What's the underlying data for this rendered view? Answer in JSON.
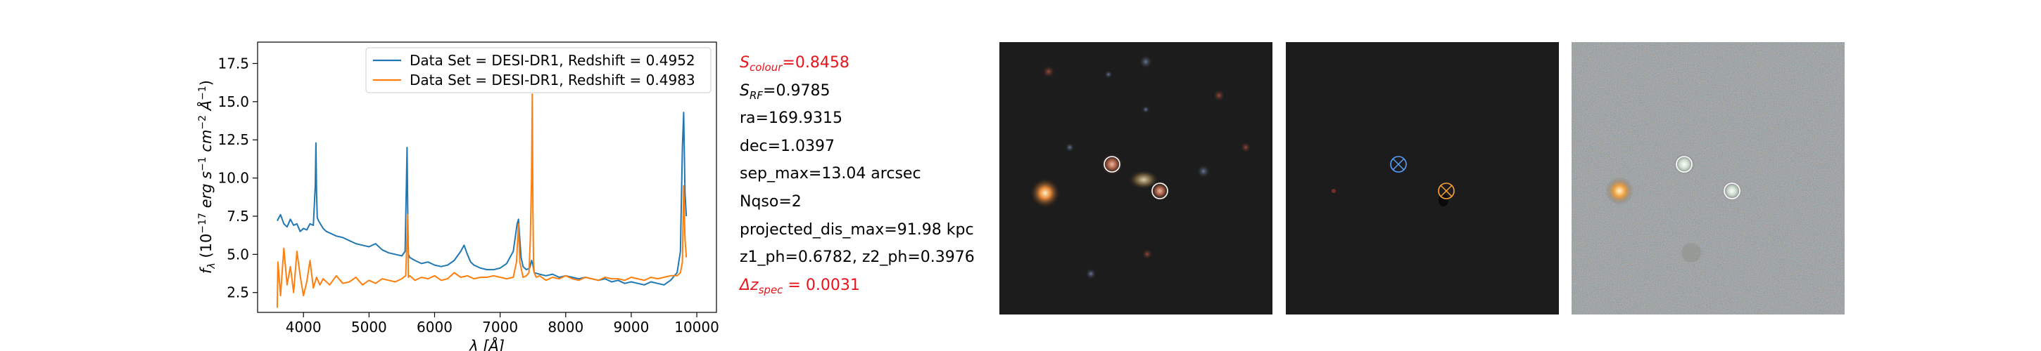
{
  "chart_data": {
    "type": "line",
    "xlabel": "λ [Å]",
    "ylabel": "f_λ (10^{-17} erg s^{-1} cm^{-2} Å^{-1})",
    "xlim": [
      3300,
      10300
    ],
    "ylim": [
      1.2,
      18.9
    ],
    "xticks": [
      4000,
      5000,
      6000,
      7000,
      8000,
      9000,
      10000
    ],
    "yticks": [
      2.5,
      5.0,
      7.5,
      10.0,
      12.5,
      15.0,
      17.5
    ],
    "grid": false,
    "legend_position": "top-right",
    "series": [
      {
        "name": "Data Set = DESI-DR1, Redshift = 0.4952",
        "color": "#1f77b4",
        "x": [
          3600,
          3650,
          3700,
          3750,
          3800,
          3850,
          3900,
          3950,
          4000,
          4050,
          4100,
          4150,
          4180,
          4190,
          4200,
          4210,
          4230,
          4300,
          4350,
          4400,
          4500,
          4600,
          4700,
          4800,
          4900,
          5000,
          5100,
          5200,
          5300,
          5400,
          5500,
          5550,
          5580,
          5590,
          5600,
          5620,
          5700,
          5800,
          5900,
          6000,
          6100,
          6200,
          6300,
          6400,
          6450,
          6500,
          6550,
          6600,
          6700,
          6800,
          6900,
          7000,
          7100,
          7200,
          7260,
          7280,
          7300,
          7320,
          7350,
          7400,
          7450,
          7480,
          7500,
          7520,
          7600,
          7700,
          7800,
          7900,
          8000,
          8100,
          8200,
          8300,
          8400,
          8500,
          8600,
          8700,
          8800,
          8900,
          9000,
          9100,
          9200,
          9300,
          9400,
          9500,
          9600,
          9700,
          9750,
          9780,
          9800,
          9820,
          9840
        ],
        "y": [
          7.2,
          7.6,
          7.0,
          6.8,
          7.3,
          6.9,
          7.0,
          6.5,
          6.7,
          6.6,
          7.0,
          6.9,
          9.5,
          12.3,
          9.0,
          7.4,
          7.2,
          6.7,
          6.5,
          6.4,
          6.2,
          6.1,
          5.9,
          5.7,
          5.6,
          5.5,
          5.7,
          5.3,
          5.1,
          5.0,
          4.9,
          5.2,
          12.0,
          8.0,
          5.0,
          4.8,
          4.6,
          4.4,
          4.5,
          4.3,
          4.2,
          4.3,
          4.6,
          5.2,
          5.6,
          5.0,
          4.5,
          4.3,
          4.1,
          4.0,
          4.0,
          4.1,
          4.4,
          5.2,
          7.0,
          7.3,
          6.0,
          4.8,
          4.2,
          4.0,
          4.1,
          4.6,
          4.3,
          3.8,
          3.7,
          3.6,
          3.7,
          3.5,
          3.6,
          3.5,
          3.4,
          3.5,
          3.4,
          3.3,
          3.4,
          3.2,
          3.3,
          3.1,
          3.2,
          3.1,
          3.0,
          3.2,
          3.1,
          3.0,
          3.3,
          3.8,
          5.2,
          12.0,
          14.3,
          9.0,
          7.5
        ]
      },
      {
        "name": "Data Set = DESI-DR1, Redshift = 0.4983",
        "color": "#ff7f0e",
        "x": [
          3600,
          3610,
          3650,
          3700,
          3750,
          3800,
          3850,
          3900,
          3950,
          4000,
          4050,
          4100,
          4150,
          4200,
          4250,
          4300,
          4400,
          4500,
          4600,
          4700,
          4800,
          4900,
          5000,
          5100,
          5200,
          5300,
          5400,
          5500,
          5560,
          5590,
          5600,
          5620,
          5700,
          5800,
          5900,
          6000,
          6100,
          6200,
          6300,
          6400,
          6500,
          6600,
          6700,
          6800,
          6900,
          7000,
          7100,
          7200,
          7250,
          7280,
          7300,
          7350,
          7400,
          7440,
          7460,
          7480,
          7490,
          7500,
          7510,
          7520,
          7550,
          7600,
          7700,
          7800,
          7900,
          8000,
          8100,
          8200,
          8300,
          8400,
          8500,
          8600,
          8700,
          8800,
          8900,
          9000,
          9100,
          9200,
          9300,
          9400,
          9500,
          9600,
          9700,
          9750,
          9780,
          9800,
          9820,
          9840
        ],
        "y": [
          1.5,
          4.5,
          2.3,
          5.4,
          3.0,
          4.2,
          2.5,
          5.2,
          3.6,
          2.3,
          3.2,
          4.6,
          2.8,
          3.5,
          3.0,
          3.4,
          3.0,
          3.6,
          3.1,
          3.2,
          3.5,
          3.0,
          3.3,
          3.1,
          3.4,
          3.3,
          3.2,
          3.4,
          3.6,
          7.6,
          3.5,
          3.6,
          3.3,
          3.5,
          3.4,
          3.6,
          3.3,
          3.4,
          3.8,
          3.5,
          3.6,
          3.4,
          3.5,
          3.5,
          3.6,
          3.5,
          3.4,
          3.5,
          4.5,
          7.0,
          4.5,
          3.5,
          3.6,
          3.8,
          6.0,
          10.0,
          15.5,
          8.0,
          4.5,
          3.8,
          3.5,
          3.6,
          3.3,
          3.5,
          3.4,
          3.6,
          3.4,
          3.3,
          3.5,
          3.4,
          3.3,
          3.5,
          3.4,
          3.4,
          3.3,
          3.5,
          3.4,
          3.3,
          3.5,
          3.4,
          3.5,
          3.6,
          3.6,
          3.8,
          4.5,
          9.5,
          6.0,
          4.8
        ]
      }
    ]
  },
  "stats": {
    "s_colour": "0.8458",
    "s_rf": "0.9785",
    "ra": "169.9315",
    "dec": "1.0397",
    "sep_max": "13.04 arcsec",
    "nqso": "2",
    "projected_dis_max": "91.98 kpc",
    "z1_ph": "0.6782",
    "z2_ph": "0.3976",
    "delta_z_spec": "0.0031"
  },
  "labels": {
    "s_colour_prefix": "S",
    "s_colour_sub": "colour",
    "s_colour_eq": "=",
    "s_rf_prefix": "S",
    "s_rf_sub": "RF",
    "s_rf_eq": "=",
    "ra": "ra=",
    "dec": "dec=",
    "sep_max": "sep_max=",
    "nqso": "Nqso=",
    "projected_dis_max": "projected_dis_max=",
    "z1_ph": "z1_ph=",
    "z2_ph": ", z2_ph=",
    "delta_prefix": "Δz",
    "delta_sub": "spec",
    "delta_eq": " = "
  },
  "colors": {
    "series_1": "#1f77b4",
    "series_2": "#ff7f0e",
    "highlight_text": "#e8141c",
    "marker_1": "#5aa0ff",
    "marker_2": "#ffa52e"
  }
}
